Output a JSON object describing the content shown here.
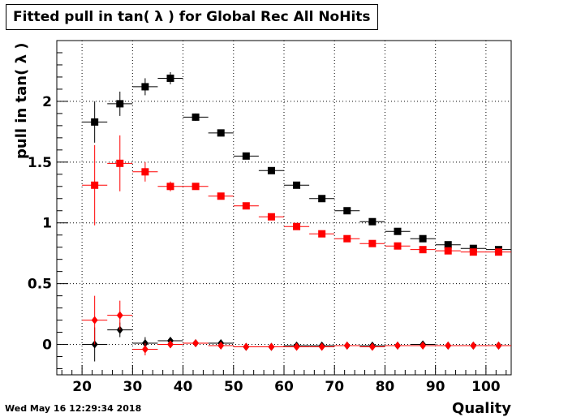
{
  "title": "Fitted pull in tan( λ ) for Global Rec All NoHits",
  "timestamp": "Wed May 16 12:29:34 2018",
  "chart_data": {
    "type": "scatter",
    "title": "Fitted pull in tan( λ ) for Global Rec All NoHits",
    "xlabel": "Quality",
    "ylabel": "pull in tan( λ )",
    "xlim": [
      15,
      105
    ],
    "ylim": [
      -0.25,
      2.5
    ],
    "xticks": [
      20,
      30,
      40,
      50,
      60,
      70,
      80,
      90,
      100
    ],
    "yticks": [
      0,
      0.5,
      1,
      1.5,
      2
    ],
    "xtick_labels": [
      "20",
      "30",
      "40",
      "50",
      "60",
      "70",
      "80",
      "90",
      "100"
    ],
    "ytick_labels": [
      "0",
      "0.5",
      "1",
      "1.5",
      "2"
    ],
    "grid": true,
    "x": [
      22.5,
      27.5,
      32.5,
      37.5,
      42.5,
      47.5,
      52.5,
      57.5,
      62.5,
      67.5,
      72.5,
      77.5,
      82.5,
      87.5,
      92.5,
      97.5,
      102.5
    ],
    "x_halfwidth": 2.5,
    "series": [
      {
        "marker": "square",
        "color": "#000000",
        "values": [
          1.83,
          1.98,
          2.12,
          2.19,
          1.87,
          1.74,
          1.55,
          1.43,
          1.31,
          1.2,
          1.1,
          1.01,
          0.93,
          0.87,
          0.82,
          0.79,
          0.78
        ],
        "errors": [
          0.17,
          0.1,
          0.07,
          0.05,
          0.03,
          0.02,
          0.01,
          0.01,
          0.01,
          0.01,
          0.01,
          0.01,
          0.01,
          0.01,
          0.01,
          0.01,
          0.01
        ]
      },
      {
        "marker": "square",
        "color": "#ff0000",
        "values": [
          1.31,
          1.49,
          1.42,
          1.3,
          1.3,
          1.22,
          1.14,
          1.05,
          0.97,
          0.91,
          0.87,
          0.83,
          0.81,
          0.78,
          0.77,
          0.76,
          0.76
        ],
        "errors": [
          0.33,
          0.23,
          0.08,
          0.04,
          0.02,
          0.01,
          0.01,
          0.01,
          0.01,
          0.01,
          0.01,
          0.01,
          0.01,
          0.01,
          0.01,
          0.01,
          0.01
        ]
      },
      {
        "marker": "diamond",
        "color": "#000000",
        "values": [
          0.0,
          0.12,
          0.01,
          0.03,
          0.01,
          0.01,
          -0.02,
          -0.02,
          -0.01,
          -0.01,
          -0.01,
          -0.01,
          -0.01,
          0.0,
          -0.01,
          -0.01,
          -0.01
        ],
        "errors": [
          0.14,
          0.06,
          0.05,
          0.02,
          0.02,
          0.01,
          0.01,
          0.01,
          0.01,
          0.01,
          0.01,
          0.01,
          0.01,
          0.01,
          0.01,
          0.01,
          0.01
        ]
      },
      {
        "marker": "diamond",
        "color": "#ff0000",
        "values": [
          0.2,
          0.24,
          -0.04,
          0.0,
          0.01,
          -0.01,
          -0.02,
          -0.02,
          -0.02,
          -0.02,
          -0.01,
          -0.02,
          -0.01,
          -0.01,
          -0.01,
          -0.01,
          -0.01
        ],
        "errors": [
          0.2,
          0.12,
          0.05,
          0.02,
          0.01,
          0.01,
          0.01,
          0.01,
          0.01,
          0.01,
          0.01,
          0.01,
          0.01,
          0.01,
          0.01,
          0.01,
          0.01
        ]
      }
    ]
  }
}
